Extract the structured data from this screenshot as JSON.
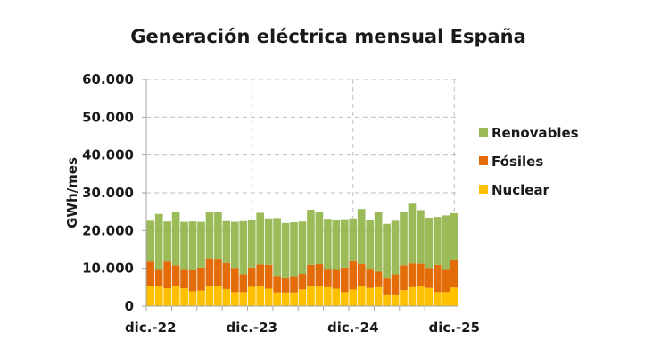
{
  "chart_data": {
    "type": "bar",
    "stacked": true,
    "title": "Generación eléctrica mensual España",
    "xlabel": "",
    "ylabel": "GWh/mes",
    "ylim": [
      0,
      60000
    ],
    "yticks": [
      0,
      10000,
      20000,
      30000,
      40000,
      50000,
      60000
    ],
    "ytick_labels": [
      "0",
      "10.000",
      "20.000",
      "30.000",
      "40.000",
      "50.000",
      "60.000"
    ],
    "xtick_labels": [
      {
        "index": 0,
        "label": "dic.-22"
      },
      {
        "index": 12,
        "label": "dic.-23"
      },
      {
        "index": 24,
        "label": "dic.-24"
      },
      {
        "index": 36,
        "label": "dic.-25"
      }
    ],
    "grid": true,
    "legend_position": "right",
    "categories": [
      "dic-22",
      "ene-23",
      "feb-23",
      "mar-23",
      "abr-23",
      "may-23",
      "jun-23",
      "jul-23",
      "ago-23",
      "sep-23",
      "oct-23",
      "nov-23",
      "dic-23",
      "ene-24",
      "feb-24",
      "mar-24",
      "abr-24",
      "may-24",
      "jun-24",
      "jul-24",
      "ago-24",
      "sep-24",
      "oct-24",
      "nov-24",
      "dic-24",
      "ene-25",
      "feb-25",
      "mar-25",
      "abr-25",
      "may-25",
      "jun-25",
      "jul-25",
      "ago-25",
      "sep-25",
      "oct-25",
      "nov-25",
      "dic-25"
    ],
    "series": [
      {
        "name": "Nuclear",
        "color": "#ffc000",
        "values": [
          5200,
          5200,
          4700,
          5200,
          4700,
          3900,
          4100,
          5200,
          5200,
          4500,
          3700,
          3700,
          5100,
          5200,
          4600,
          3600,
          3600,
          3600,
          4400,
          5200,
          5200,
          5000,
          4600,
          3700,
          4400,
          5200,
          4800,
          5000,
          3100,
          3100,
          4200,
          5000,
          5200,
          4800,
          3700,
          3700,
          4900
        ]
      },
      {
        "name": "Fósiles",
        "color": "#e36c09",
        "values": [
          6800,
          4600,
          7300,
          5600,
          5100,
          5600,
          6100,
          7400,
          7300,
          6900,
          6400,
          4700,
          5100,
          5800,
          6300,
          4400,
          4000,
          4300,
          4100,
          5700,
          5900,
          4900,
          5200,
          6500,
          7700,
          5900,
          5100,
          4100,
          4200,
          5300,
          6600,
          6300,
          6000,
          5300,
          7200,
          6100,
          7400
        ]
      },
      {
        "name": "Renovables",
        "color": "#9bbb59",
        "values": [
          10600,
          14600,
          10400,
          14200,
          12500,
          12900,
          12100,
          12300,
          12300,
          11100,
          12200,
          14100,
          12600,
          13700,
          12300,
          15300,
          14400,
          14300,
          13900,
          14600,
          13700,
          13200,
          13000,
          12800,
          11100,
          14600,
          12900,
          15800,
          14500,
          14200,
          14200,
          15800,
          14200,
          13300,
          12700,
          14200,
          12300
        ]
      }
    ]
  }
}
